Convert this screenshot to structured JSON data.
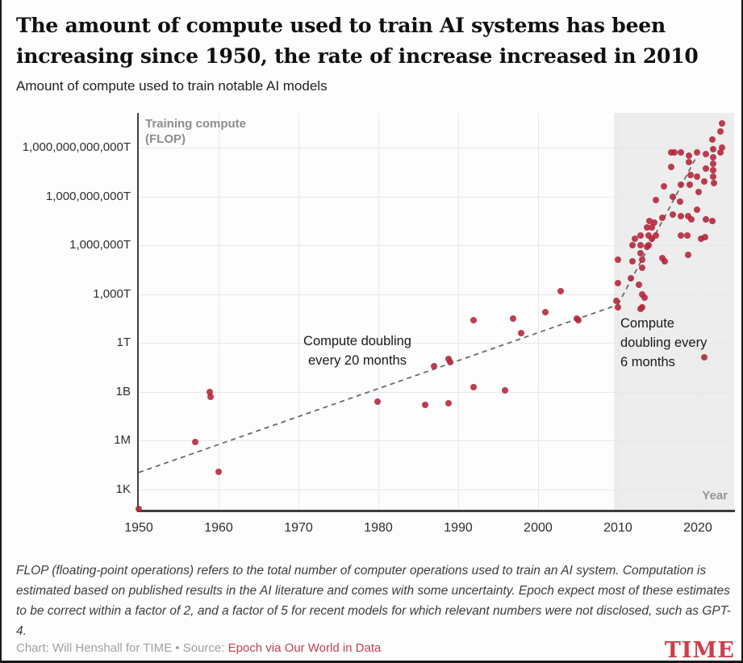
{
  "header": {
    "title": "The amount of compute used to train AI systems has been increasing since 1950, the rate of increase increased in 2010",
    "subtitle": "Amount of compute used to train notable AI models"
  },
  "chart_data": {
    "type": "scatter",
    "title": "Amount of compute used to train notable AI models",
    "y_axis_title": "Training compute\n(FLOP)",
    "x_axis_title": "Year",
    "x_range": [
      1950,
      2024.55
    ],
    "y_range_log10": [
      1.76,
      26.13
    ],
    "grid": true,
    "x_ticks": [
      1950,
      1960,
      1970,
      1980,
      1990,
      2000,
      2010,
      2020
    ],
    "y_ticks": [
      {
        "label": "1,000,000,000,000T",
        "log10": 24
      },
      {
        "label": "1,000,000,000T",
        "log10": 21
      },
      {
        "label": "1,000,000T",
        "log10": 18
      },
      {
        "label": "1,000T",
        "log10": 15
      },
      {
        "label": "1T",
        "log10": 12
      },
      {
        "label": "1B",
        "log10": 9
      },
      {
        "label": "1M",
        "log10": 6
      },
      {
        "label": "1K",
        "log10": 3
      }
    ],
    "highlight_region": {
      "start_year": 2009.5,
      "end_year": 2024.55,
      "color": "#ededed"
    },
    "annotations": {
      "slow": "Compute doubling\nevery  20 months",
      "fast": "Compute\ndoubling every\n6 months"
    },
    "trend_lines": [
      {
        "name": "doubling-every-20-months",
        "x1": 1950,
        "log10_1": 4.05,
        "x2": 2010,
        "log10_2": 14.35
      },
      {
        "name": "doubling-every-6-months",
        "x1": 2010,
        "log10_1": 14.35,
        "x2": 2019.8,
        "log10_2": 23.4
      }
    ],
    "point_color": "#b32338",
    "line_color": "#6e6a66",
    "grid_color": "#e7e7e7",
    "points_year_log10flop": [
      [
        1950.0,
        1.8
      ],
      [
        1957.1,
        5.9
      ],
      [
        1958.9,
        9.0
      ],
      [
        1959.0,
        8.7
      ],
      [
        1960.0,
        4.1
      ],
      [
        1979.9,
        8.4
      ],
      [
        1985.9,
        8.2
      ],
      [
        1987.0,
        10.6
      ],
      [
        1988.8,
        11.0
      ],
      [
        1989.0,
        10.8
      ],
      [
        1988.8,
        8.3
      ],
      [
        1991.9,
        13.4
      ],
      [
        1991.9,
        9.3
      ],
      [
        1995.9,
        9.1
      ],
      [
        1996.9,
        13.5
      ],
      [
        1997.9,
        12.6
      ],
      [
        2000.9,
        13.9
      ],
      [
        2002.8,
        15.2
      ],
      [
        2004.9,
        13.5
      ],
      [
        2005.1,
        13.4
      ],
      [
        2009.8,
        14.6
      ],
      [
        2010.0,
        14.2
      ],
      [
        2010.0,
        15.7
      ],
      [
        2010.0,
        17.1
      ],
      [
        2011.6,
        16.0
      ],
      [
        2011.8,
        17.0
      ],
      [
        2011.8,
        18.0
      ],
      [
        2012.1,
        18.4
      ],
      [
        2012.6,
        15.6
      ],
      [
        2012.8,
        14.1
      ],
      [
        2012.8,
        17.5
      ],
      [
        2012.8,
        18.0
      ],
      [
        2012.8,
        18.6
      ],
      [
        2013.0,
        14.2
      ],
      [
        2013.0,
        15.0
      ],
      [
        2013.0,
        16.6
      ],
      [
        2013.0,
        17.1
      ],
      [
        2013.3,
        14.8
      ],
      [
        2013.6,
        17.9
      ],
      [
        2013.6,
        19.1
      ],
      [
        2013.8,
        18.0
      ],
      [
        2013.8,
        18.6
      ],
      [
        2013.9,
        19.5
      ],
      [
        2014.2,
        18.4
      ],
      [
        2014.2,
        19.1
      ],
      [
        2014.5,
        19.4
      ],
      [
        2014.8,
        18.6
      ],
      [
        2014.8,
        20.8
      ],
      [
        2015.6,
        17.2
      ],
      [
        2015.6,
        19.7
      ],
      [
        2015.8,
        21.6
      ],
      [
        2015.9,
        17.0
      ],
      [
        2016.7,
        22.8
      ],
      [
        2016.7,
        23.7
      ],
      [
        2016.9,
        19.9
      ],
      [
        2016.9,
        21.0
      ],
      [
        2017.1,
        23.7
      ],
      [
        2017.8,
        20.7
      ],
      [
        2017.9,
        18.6
      ],
      [
        2017.9,
        19.8
      ],
      [
        2017.9,
        21.7
      ],
      [
        2017.9,
        23.7
      ],
      [
        2018.7,
        18.6
      ],
      [
        2018.8,
        17.4
      ],
      [
        2018.8,
        19.8
      ],
      [
        2018.9,
        23.1
      ],
      [
        2018.9,
        23.5
      ],
      [
        2019.0,
        21.7
      ],
      [
        2019.1,
        22.3
      ],
      [
        2019.2,
        19.6
      ],
      [
        2019.9,
        20.2
      ],
      [
        2019.9,
        22.2
      ],
      [
        2019.9,
        23.7
      ],
      [
        2020.1,
        21.3
      ],
      [
        2020.4,
        18.4
      ],
      [
        2020.8,
        11.1
      ],
      [
        2020.8,
        21.9
      ],
      [
        2020.9,
        18.5
      ],
      [
        2021.0,
        19.6
      ],
      [
        2021.0,
        22.7
      ],
      [
        2021.0,
        23.6
      ],
      [
        2021.8,
        19.5
      ],
      [
        2021.8,
        24.5
      ],
      [
        2021.9,
        22.2
      ],
      [
        2021.9,
        22.6
      ],
      [
        2021.9,
        23.0
      ],
      [
        2021.9,
        23.4
      ],
      [
        2021.9,
        23.9
      ],
      [
        2022.0,
        21.8
      ],
      [
        2022.8,
        23.7
      ],
      [
        2022.8,
        25.0
      ],
      [
        2023.0,
        24.0
      ],
      [
        2023.0,
        25.5
      ]
    ]
  },
  "footer": {
    "note": "FLOP (floating-point operations) refers to the total number of computer operations used to train an AI system. Computation is estimated based on published results in the AI literature and comes with some uncertainty. Epoch expect most of these estimates to be correct within a factor of 2, and a factor of 5 for recent models for which relevant numbers were not disclosed, such as GPT-4.",
    "credit_prefix": "Chart: Will Henshall for TIME • Source: ",
    "credit_link": "Epoch via Our World in Data",
    "logo": "TIME"
  },
  "colors": {
    "accent_red": "#c4404d",
    "dot_red": "#b32338",
    "logo_red": "#ce3d4b",
    "shade_gray": "#ededed",
    "axis_gray": "#3e3e3e"
  }
}
